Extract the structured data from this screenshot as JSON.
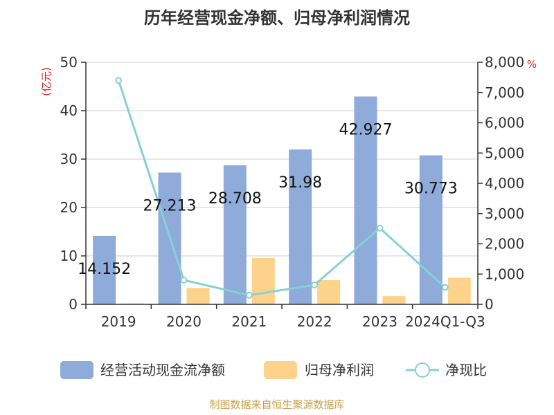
{
  "title": "历年经营现金净额、归母净利润情况",
  "source": "制图数据来自恒生聚源数据库",
  "colors": {
    "cashflow": "#8eabd9",
    "netprofit": "#fdd38b",
    "ratio": "#86d0d6",
    "axis": "#333333",
    "grid": "#cccccc",
    "unit": "#e02020",
    "source": "#c8a04a"
  },
  "chart_data": {
    "type": "bar",
    "categories": [
      "2019",
      "2020",
      "2021",
      "2022",
      "2023",
      "2024Q1-Q3"
    ],
    "series": [
      {
        "name": "经营活动现金流净额",
        "kind": "bar",
        "axis": "left",
        "values": [
          14.152,
          27.213,
          28.708,
          31.98,
          42.927,
          30.773
        ],
        "labels": [
          "14.152",
          "27.213",
          "28.708",
          "31.98",
          "42.927",
          "30.773"
        ]
      },
      {
        "name": "归母净利润",
        "kind": "bar",
        "axis": "left",
        "values": [
          0.2,
          3.4,
          9.6,
          5.0,
          1.7,
          5.5
        ]
      },
      {
        "name": "净现比",
        "kind": "line",
        "axis": "right",
        "values": [
          7400,
          800,
          300,
          640,
          2520,
          560
        ]
      }
    ],
    "y_left": {
      "unit": "(亿元)",
      "min": 0,
      "max": 50,
      "ticks": [
        0,
        10,
        20,
        30,
        40,
        50
      ],
      "tick_labels": [
        "0",
        "10",
        "20",
        "30",
        "40",
        "50"
      ]
    },
    "y_right": {
      "unit": "%",
      "min": 0,
      "max": 8000,
      "ticks": [
        0,
        1000,
        2000,
        3000,
        4000,
        5000,
        6000,
        7000,
        8000
      ],
      "tick_labels": [
        "0",
        "1,000",
        "2,000",
        "3,000",
        "4,000",
        "5,000",
        "6,000",
        "7,000",
        "8,000"
      ]
    },
    "grid": true,
    "legend_position": "bottom"
  }
}
